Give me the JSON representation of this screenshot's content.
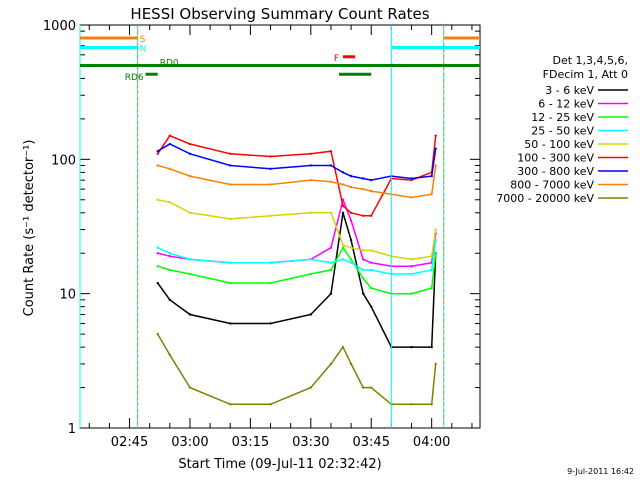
{
  "chart_data": {
    "type": "line",
    "title": "HESSI Observing Summary Count Rates",
    "xlabel": "Start Time (09-Jul-11 02:32:42)",
    "ylabel": "Count Rate (s⁻¹ detector⁻¹)",
    "y_scale": "log",
    "ylim": [
      1,
      1000
    ],
    "xlim": [
      "02:32:42",
      "04:12:00"
    ],
    "x_ticks": [
      "02:45",
      "03:00",
      "03:15",
      "03:30",
      "03:45",
      "04:00"
    ],
    "y_ticks": [
      "1",
      "10",
      "100",
      "1000"
    ],
    "timestamp": "9-Jul-2011 16:42",
    "legend": {
      "placement": "right",
      "header": [
        "Det 1,3,4,5,6,",
        "FDecim 1, Att 0"
      ]
    },
    "series": [
      {
        "name": "3 - 6 keV",
        "color": "#000000",
        "x": [
          "02:52",
          "02:55",
          "03:00",
          "03:10",
          "03:20",
          "03:30",
          "03:35",
          "03:38",
          "03:40",
          "03:43",
          "03:45",
          "03:50",
          "03:55",
          "04:00",
          "04:01"
        ],
        "y": [
          12,
          9,
          7,
          6,
          6,
          7,
          10,
          40,
          25,
          10,
          8,
          4,
          4,
          4,
          20
        ]
      },
      {
        "name": "6 - 12 keV",
        "color": "#ff00ff",
        "x": [
          "02:52",
          "02:55",
          "03:00",
          "03:10",
          "03:20",
          "03:30",
          "03:35",
          "03:38",
          "03:40",
          "03:43",
          "03:45",
          "03:50",
          "03:55",
          "04:00",
          "04:01"
        ],
        "y": [
          20,
          19,
          18,
          17,
          17,
          18,
          22,
          50,
          35,
          18,
          17,
          16,
          16,
          17,
          28
        ]
      },
      {
        "name": "12 - 25 keV",
        "color": "#00ff00",
        "x": [
          "02:52",
          "02:55",
          "03:00",
          "03:10",
          "03:20",
          "03:30",
          "03:35",
          "03:38",
          "03:40",
          "03:43",
          "03:45",
          "03:50",
          "03:55",
          "04:00",
          "04:01"
        ],
        "y": [
          16,
          15,
          14,
          12,
          12,
          14,
          15,
          22,
          18,
          13,
          11,
          10,
          10,
          11,
          20
        ]
      },
      {
        "name": "25 - 50 keV",
        "color": "#00ffff",
        "x": [
          "02:52",
          "02:55",
          "03:00",
          "03:10",
          "03:20",
          "03:30",
          "03:35",
          "03:38",
          "03:40",
          "03:43",
          "03:45",
          "03:50",
          "03:55",
          "04:00",
          "04:01"
        ],
        "y": [
          22,
          20,
          18,
          17,
          17,
          18,
          17,
          18,
          17,
          15,
          15,
          14,
          14,
          15,
          25
        ]
      },
      {
        "name": "50 - 100 keV",
        "color": "#d4d400",
        "x": [
          "02:52",
          "02:55",
          "03:00",
          "03:10",
          "03:20",
          "03:30",
          "03:35",
          "03:38",
          "03:40",
          "03:43",
          "03:45",
          "03:50",
          "03:55",
          "04:00",
          "04:01"
        ],
        "y": [
          50,
          48,
          40,
          36,
          38,
          40,
          40,
          23,
          22,
          21,
          21,
          19,
          18,
          19,
          30
        ]
      },
      {
        "name": "100 - 300 keV",
        "color": "#ff0000",
        "x": [
          "02:52",
          "02:55",
          "03:00",
          "03:10",
          "03:20",
          "03:30",
          "03:35",
          "03:38",
          "03:40",
          "03:43",
          "03:45",
          "03:50",
          "03:55",
          "04:00",
          "04:01"
        ],
        "y": [
          110,
          150,
          130,
          110,
          105,
          110,
          115,
          45,
          40,
          38,
          38,
          72,
          70,
          80,
          150
        ]
      },
      {
        "name": "300 - 800 keV",
        "color": "#0000ff",
        "x": [
          "02:52",
          "02:55",
          "03:00",
          "03:10",
          "03:20",
          "03:30",
          "03:35",
          "03:38",
          "03:40",
          "03:43",
          "03:45",
          "03:50",
          "03:55",
          "04:00",
          "04:01"
        ],
        "y": [
          115,
          130,
          110,
          90,
          85,
          90,
          90,
          80,
          75,
          72,
          70,
          75,
          72,
          75,
          120
        ]
      },
      {
        "name": "800 - 7000 keV",
        "color": "#ff8000",
        "x": [
          "02:52",
          "02:55",
          "03:00",
          "03:10",
          "03:20",
          "03:30",
          "03:35",
          "03:38",
          "03:40",
          "03:43",
          "03:45",
          "03:50",
          "03:55",
          "04:00",
          "04:01"
        ],
        "y": [
          90,
          85,
          75,
          65,
          65,
          70,
          68,
          65,
          62,
          60,
          58,
          55,
          52,
          55,
          90
        ]
      },
      {
        "name": "7000 - 20000 keV",
        "color": "#808000",
        "x": [
          "02:52",
          "02:55",
          "03:00",
          "03:10",
          "03:20",
          "03:30",
          "03:35",
          "03:38",
          "03:40",
          "03:43",
          "03:45",
          "03:50",
          "03:55",
          "04:00",
          "04:01"
        ],
        "y": [
          5,
          3.5,
          2,
          1.5,
          1.5,
          2,
          3,
          4,
          3,
          2,
          2,
          1.5,
          1.5,
          1.5,
          3
        ]
      }
    ],
    "flags": [
      {
        "label": "S",
        "color": "#ff8000",
        "level": 800,
        "segments": [
          [
            "02:32:42",
            "02:47"
          ],
          [
            "04:03",
            "04:12"
          ]
        ]
      },
      {
        "label": "N",
        "color": "#00ffff",
        "level": 680,
        "segments": [
          [
            "02:32:42",
            "02:47"
          ],
          [
            "03:50",
            "04:12"
          ]
        ]
      },
      {
        "label": "RD6",
        "color": "#008000",
        "level": 430,
        "segments": [
          [
            "02:49",
            "02:52"
          ],
          [
            "03:37",
            "03:45"
          ]
        ]
      },
      {
        "label": "RD0",
        "color": "#008000",
        "level": 500,
        "segments": [
          [
            "02:32:42",
            "04:12"
          ]
        ]
      },
      {
        "label": "F",
        "color": "#ff0000",
        "level": 580,
        "segments": [
          [
            "03:38",
            "03:41"
          ]
        ]
      }
    ],
    "vertical_markers": [
      {
        "time": "02:32:42",
        "color": "#00ffff"
      },
      {
        "time": "02:47",
        "color": "#00ffff"
      },
      {
        "time": "03:50",
        "color": "#00ffff"
      },
      {
        "time": "04:03",
        "color": "#00ffff"
      },
      {
        "time": "02:47",
        "color": "#ff8000"
      },
      {
        "time": "04:03",
        "color": "#ff8000"
      }
    ]
  }
}
